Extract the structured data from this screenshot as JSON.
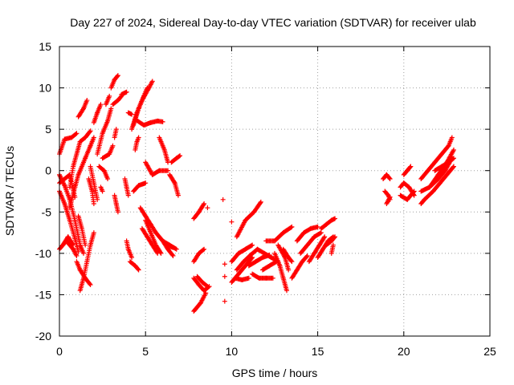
{
  "chart_data": {
    "type": "scatter",
    "title": "Day 227 of 2024, Sidereal Day-to-day VTEC variation (SDTVAR) for receiver ulab",
    "xlabel": "GPS time / hours",
    "ylabel": "SDTVAR / TECUs",
    "xlim": [
      0,
      25
    ],
    "ylim": [
      -20,
      15
    ],
    "xticks": [
      "0",
      "5",
      "10",
      "15",
      "20",
      "25"
    ],
    "yticks": [
      "15",
      "10",
      "5",
      "0",
      "-5",
      "-10",
      "-15",
      "-20"
    ],
    "grid": true,
    "marker": "plus",
    "color": "#ff0000",
    "segments": [
      [
        [
          0.0,
          2.0
        ],
        [
          0.3,
          3.8
        ],
        [
          0.7,
          4.0
        ],
        [
          1.0,
          4.5
        ]
      ],
      [
        [
          0.0,
          -0.5
        ],
        [
          0.3,
          -1.8
        ],
        [
          0.6,
          -3.5
        ],
        [
          0.9,
          -6.0
        ],
        [
          1.2,
          -9.0
        ],
        [
          1.4,
          -10.0
        ]
      ],
      [
        [
          0.0,
          -2.5
        ],
        [
          0.3,
          -4.0
        ],
        [
          0.6,
          -6.0
        ],
        [
          0.9,
          -8.2
        ],
        [
          1.1,
          -9.8
        ]
      ],
      [
        [
          0.0,
          -1.5
        ],
        [
          0.6,
          -0.5
        ],
        [
          0.9,
          -3.2
        ]
      ],
      [
        [
          0.0,
          -9.5
        ],
        [
          0.4,
          -8.5
        ],
        [
          0.8,
          -9.5
        ],
        [
          1.0,
          -10.3
        ]
      ],
      [
        [
          0.2,
          -9.0
        ],
        [
          0.5,
          -8.0
        ],
        [
          0.8,
          -9.0
        ]
      ],
      [
        [
          0.6,
          -2.0
        ],
        [
          0.8,
          0.5
        ],
        [
          1.0,
          2.0
        ],
        [
          1.2,
          3.5
        ],
        [
          1.5,
          4.0
        ],
        [
          1.8,
          4.8
        ]
      ],
      [
        [
          0.6,
          -4.5
        ],
        [
          0.9,
          -2.0
        ],
        [
          1.1,
          -0.5
        ],
        [
          1.5,
          1.5
        ],
        [
          1.8,
          3.0
        ],
        [
          2.0,
          4.0
        ]
      ],
      [
        [
          1.0,
          -11.0
        ],
        [
          1.2,
          -12.0
        ],
        [
          1.5,
          -13.0
        ],
        [
          1.8,
          -13.8
        ]
      ],
      [
        [
          1.2,
          -14.5
        ],
        [
          1.4,
          -13.0
        ],
        [
          1.6,
          -11.0
        ],
        [
          1.8,
          -9.0
        ],
        [
          2.0,
          -7.5
        ]
      ],
      [
        [
          1.1,
          -5.5
        ],
        [
          1.3,
          -7.0
        ],
        [
          1.5,
          -9.0
        ]
      ],
      [
        [
          1.1,
          6.5
        ],
        [
          1.4,
          7.5
        ],
        [
          1.6,
          8.5
        ]
      ],
      [
        [
          1.7,
          -1.0
        ],
        [
          1.9,
          -2.5
        ],
        [
          2.0,
          -4.0
        ]
      ],
      [
        [
          1.8,
          0.5
        ],
        [
          2.0,
          -1.5
        ],
        [
          2.2,
          -3.5
        ]
      ],
      [
        [
          2.0,
          5.8
        ],
        [
          2.2,
          7.0
        ],
        [
          2.4,
          8.0
        ]
      ],
      [
        [
          2.2,
          2.0
        ],
        [
          2.5,
          4.5
        ],
        [
          2.8,
          6.0
        ],
        [
          3.0,
          7.5
        ]
      ],
      [
        [
          2.3,
          0.5
        ],
        [
          2.6,
          0.0
        ],
        [
          2.8,
          -1.0
        ]
      ],
      [
        [
          2.4,
          -2.0
        ],
        [
          2.5,
          -2.5
        ]
      ],
      [
        [
          2.5,
          1.5
        ],
        [
          2.9,
          2.0
        ],
        [
          3.1,
          3.0
        ]
      ],
      [
        [
          2.7,
          8.0
        ],
        [
          2.9,
          9.0
        ]
      ],
      [
        [
          3.0,
          10.0
        ],
        [
          3.2,
          11.0
        ],
        [
          3.4,
          11.5
        ]
      ],
      [
        [
          3.1,
          8.0
        ],
        [
          3.4,
          8.5
        ],
        [
          3.6,
          9.0
        ]
      ],
      [
        [
          3.2,
          -3.0
        ],
        [
          3.3,
          -4.0
        ],
        [
          3.4,
          -5.0
        ]
      ],
      [
        [
          3.2,
          4.0
        ],
        [
          3.3,
          5.0
        ]
      ],
      [
        [
          3.6,
          9.2
        ],
        [
          3.9,
          9.5
        ]
      ],
      [
        [
          3.8,
          -1.0
        ],
        [
          3.9,
          -2.0
        ],
        [
          4.0,
          -3.0
        ]
      ],
      [
        [
          3.9,
          -8.5
        ],
        [
          4.0,
          -9.5
        ],
        [
          4.2,
          -10.5
        ]
      ],
      [
        [
          4.1,
          -11.0
        ],
        [
          4.4,
          -11.5
        ],
        [
          4.6,
          -12.0
        ]
      ],
      [
        [
          4.2,
          5.0
        ],
        [
          4.5,
          7.0
        ],
        [
          4.8,
          8.5
        ],
        [
          5.2,
          10.0
        ],
        [
          5.4,
          10.8
        ]
      ],
      [
        [
          4.3,
          5.5
        ],
        [
          4.6,
          7.5
        ],
        [
          4.9,
          9.0
        ],
        [
          5.1,
          10.0
        ]
      ],
      [
        [
          4.4,
          2.5
        ],
        [
          4.5,
          3.5
        ],
        [
          4.6,
          4.0
        ]
      ],
      [
        [
          4.0,
          7.0
        ],
        [
          4.2,
          6.8
        ]
      ],
      [
        [
          4.3,
          -2.5
        ],
        [
          4.6,
          -1.8
        ],
        [
          5.0,
          -1.5
        ]
      ],
      [
        [
          4.7,
          -4.5
        ],
        [
          5.0,
          -5.5
        ],
        [
          5.3,
          -6.5
        ],
        [
          5.6,
          -7.5
        ],
        [
          6.0,
          -8.5
        ],
        [
          6.4,
          -9.0
        ],
        [
          6.8,
          -9.5
        ]
      ],
      [
        [
          4.8,
          -7.0
        ],
        [
          5.1,
          -8.0
        ],
        [
          5.4,
          -9.0
        ],
        [
          5.7,
          -10.0
        ]
      ],
      [
        [
          5.0,
          -6.0
        ],
        [
          5.3,
          -7.5
        ],
        [
          5.6,
          -9.0
        ],
        [
          5.9,
          -10.0
        ]
      ],
      [
        [
          4.4,
          6.2
        ],
        [
          4.9,
          5.5
        ],
        [
          5.3,
          5.8
        ],
        [
          5.7,
          6.0
        ],
        [
          6.0,
          5.9
        ]
      ],
      [
        [
          5.0,
          1.0
        ],
        [
          5.4,
          -0.5
        ],
        [
          5.8,
          0.0
        ],
        [
          6.3,
          0.0
        ]
      ],
      [
        [
          5.8,
          4.0
        ],
        [
          6.1,
          2.5
        ],
        [
          6.3,
          1.0
        ]
      ],
      [
        [
          6.4,
          -0.5
        ],
        [
          6.7,
          -1.5
        ],
        [
          6.9,
          -3.0
        ]
      ],
      [
        [
          6.0,
          -8.5
        ],
        [
          6.3,
          -9.5
        ],
        [
          6.6,
          -10.3
        ]
      ],
      [
        [
          6.5,
          1.0
        ],
        [
          6.8,
          1.5
        ],
        [
          7.0,
          1.8
        ]
      ],
      [
        [
          6.2,
          -9.0
        ],
        [
          6.6,
          -9.3
        ]
      ],
      [
        [
          7.8,
          -5.8
        ],
        [
          8.1,
          -5.0
        ],
        [
          8.4,
          -4.0
        ]
      ],
      [
        [
          7.8,
          -11.0
        ],
        [
          8.1,
          -10.0
        ],
        [
          8.4,
          -9.5
        ]
      ],
      [
        [
          7.8,
          -13.0
        ],
        [
          8.1,
          -13.8
        ],
        [
          8.4,
          -14.5
        ],
        [
          8.7,
          -14.0
        ]
      ],
      [
        [
          7.8,
          -17.0
        ],
        [
          8.2,
          -16.0
        ],
        [
          8.5,
          -14.8
        ]
      ],
      [
        [
          8.0,
          -12.8
        ],
        [
          8.3,
          -13.5
        ],
        [
          8.6,
          -14.0
        ]
      ],
      [
        [
          8.6,
          -4.5
        ]
      ],
      [
        [
          9.5,
          -3.5
        ]
      ],
      [
        [
          9.6,
          -11.3
        ]
      ],
      [
        [
          9.6,
          -12.8
        ]
      ],
      [
        [
          9.6,
          -15.8
        ]
      ],
      [
        [
          10.0,
          -6.2
        ]
      ],
      [
        [
          10.0,
          -13.5
        ],
        [
          10.4,
          -12.5
        ],
        [
          10.8,
          -11.5
        ],
        [
          11.2,
          -10.5
        ]
      ],
      [
        [
          10.0,
          -11.0
        ],
        [
          10.4,
          -10.0
        ],
        [
          10.8,
          -9.5
        ],
        [
          11.2,
          -9.0
        ]
      ],
      [
        [
          10.3,
          -12.0
        ],
        [
          10.7,
          -11.0
        ],
        [
          11.1,
          -10.2
        ],
        [
          11.5,
          -9.5
        ]
      ],
      [
        [
          10.2,
          -13.0
        ],
        [
          10.6,
          -13.2
        ],
        [
          11.0,
          -13.0
        ]
      ],
      [
        [
          10.3,
          -8.0
        ],
        [
          10.8,
          -6.0
        ],
        [
          11.3,
          -5.0
        ],
        [
          11.7,
          -3.8
        ]
      ],
      [
        [
          11.0,
          -11.5
        ],
        [
          11.4,
          -11.0
        ],
        [
          11.8,
          -10.5
        ],
        [
          12.2,
          -10.2
        ]
      ],
      [
        [
          11.2,
          -12.5
        ],
        [
          11.6,
          -13.0
        ],
        [
          12.0,
          -13.0
        ],
        [
          12.4,
          -13.0
        ]
      ],
      [
        [
          11.5,
          -9.5
        ],
        [
          11.9,
          -10.0
        ],
        [
          12.3,
          -10.5
        ],
        [
          12.7,
          -11.0
        ]
      ],
      [
        [
          11.8,
          -12.0
        ],
        [
          12.2,
          -11.5
        ],
        [
          12.6,
          -11.0
        ]
      ],
      [
        [
          12.0,
          -8.5
        ],
        [
          12.5,
          -8.5
        ],
        [
          13.0,
          -7.5
        ],
        [
          13.5,
          -6.8
        ]
      ],
      [
        [
          12.5,
          -10.0
        ],
        [
          12.8,
          -11.5
        ],
        [
          13.0,
          -13.0
        ],
        [
          13.2,
          -14.5
        ]
      ],
      [
        [
          12.7,
          -9.0
        ],
        [
          13.1,
          -10.5
        ],
        [
          13.3,
          -12.0
        ]
      ],
      [
        [
          13.0,
          -9.5
        ],
        [
          13.3,
          -10.5
        ],
        [
          13.5,
          -11.0
        ]
      ],
      [
        [
          13.5,
          -13.0
        ],
        [
          13.8,
          -12.0
        ],
        [
          14.1,
          -11.0
        ],
        [
          14.4,
          -10.3
        ]
      ],
      [
        [
          13.8,
          -8.5
        ],
        [
          14.2,
          -7.5
        ],
        [
          14.6,
          -7.0
        ],
        [
          15.0,
          -6.8
        ]
      ],
      [
        [
          14.0,
          -10.0
        ],
        [
          14.4,
          -9.0
        ],
        [
          14.8,
          -8.0
        ],
        [
          15.2,
          -7.5
        ]
      ],
      [
        [
          14.5,
          -11.0
        ],
        [
          14.8,
          -10.0
        ],
        [
          15.1,
          -9.0
        ],
        [
          15.4,
          -8.0
        ]
      ],
      [
        [
          15.0,
          -10.5
        ],
        [
          15.3,
          -9.5
        ],
        [
          15.6,
          -8.5
        ],
        [
          15.9,
          -8.0
        ]
      ],
      [
        [
          15.2,
          -7.0
        ],
        [
          15.5,
          -6.5
        ],
        [
          15.8,
          -6.0
        ],
        [
          16.0,
          -5.8
        ]
      ],
      [
        [
          15.5,
          -9.0
        ],
        [
          15.8,
          -8.5
        ],
        [
          16.0,
          -8.0
        ]
      ],
      [
        [
          15.8,
          -10.0
        ],
        [
          15.9,
          -9.0
        ]
      ],
      [
        [
          18.8,
          -1.0
        ],
        [
          19.0,
          -0.5
        ],
        [
          19.2,
          -1.0
        ]
      ],
      [
        [
          18.9,
          -2.5
        ],
        [
          19.1,
          -3.0
        ],
        [
          19.2,
          -3.5
        ]
      ],
      [
        [
          19.0,
          -4.0
        ],
        [
          19.2,
          -3.2
        ]
      ],
      [
        [
          19.8,
          -2.0
        ],
        [
          20.0,
          -1.5
        ],
        [
          20.3,
          -2.0
        ],
        [
          20.6,
          -3.0
        ]
      ],
      [
        [
          19.8,
          -3.0
        ],
        [
          20.2,
          -3.5
        ],
        [
          20.6,
          -2.5
        ]
      ],
      [
        [
          20.0,
          -0.5
        ],
        [
          20.2,
          0.0
        ],
        [
          20.4,
          0.5
        ]
      ],
      [
        [
          21.0,
          -1.0
        ],
        [
          21.4,
          0.0
        ],
        [
          21.8,
          1.0
        ],
        [
          22.2,
          2.0
        ],
        [
          22.6,
          3.0
        ],
        [
          22.8,
          4.0
        ]
      ],
      [
        [
          21.0,
          -2.5
        ],
        [
          21.5,
          -2.0
        ],
        [
          22.0,
          -1.0
        ],
        [
          22.4,
          0.0
        ],
        [
          22.8,
          1.5
        ]
      ],
      [
        [
          21.2,
          -3.5
        ],
        [
          21.7,
          -2.5
        ],
        [
          22.1,
          -1.5
        ],
        [
          22.5,
          -0.5
        ],
        [
          22.9,
          0.5
        ]
      ],
      [
        [
          21.5,
          -2.0
        ],
        [
          22.0,
          -0.5
        ],
        [
          22.5,
          1.0
        ],
        [
          22.9,
          2.5
        ]
      ],
      [
        [
          21.0,
          -4.0
        ],
        [
          21.2,
          -3.5
        ]
      ],
      [
        [
          21.8,
          0.0
        ],
        [
          22.2,
          0.5
        ],
        [
          22.6,
          1.0
        ],
        [
          22.9,
          1.5
        ]
      ]
    ]
  }
}
